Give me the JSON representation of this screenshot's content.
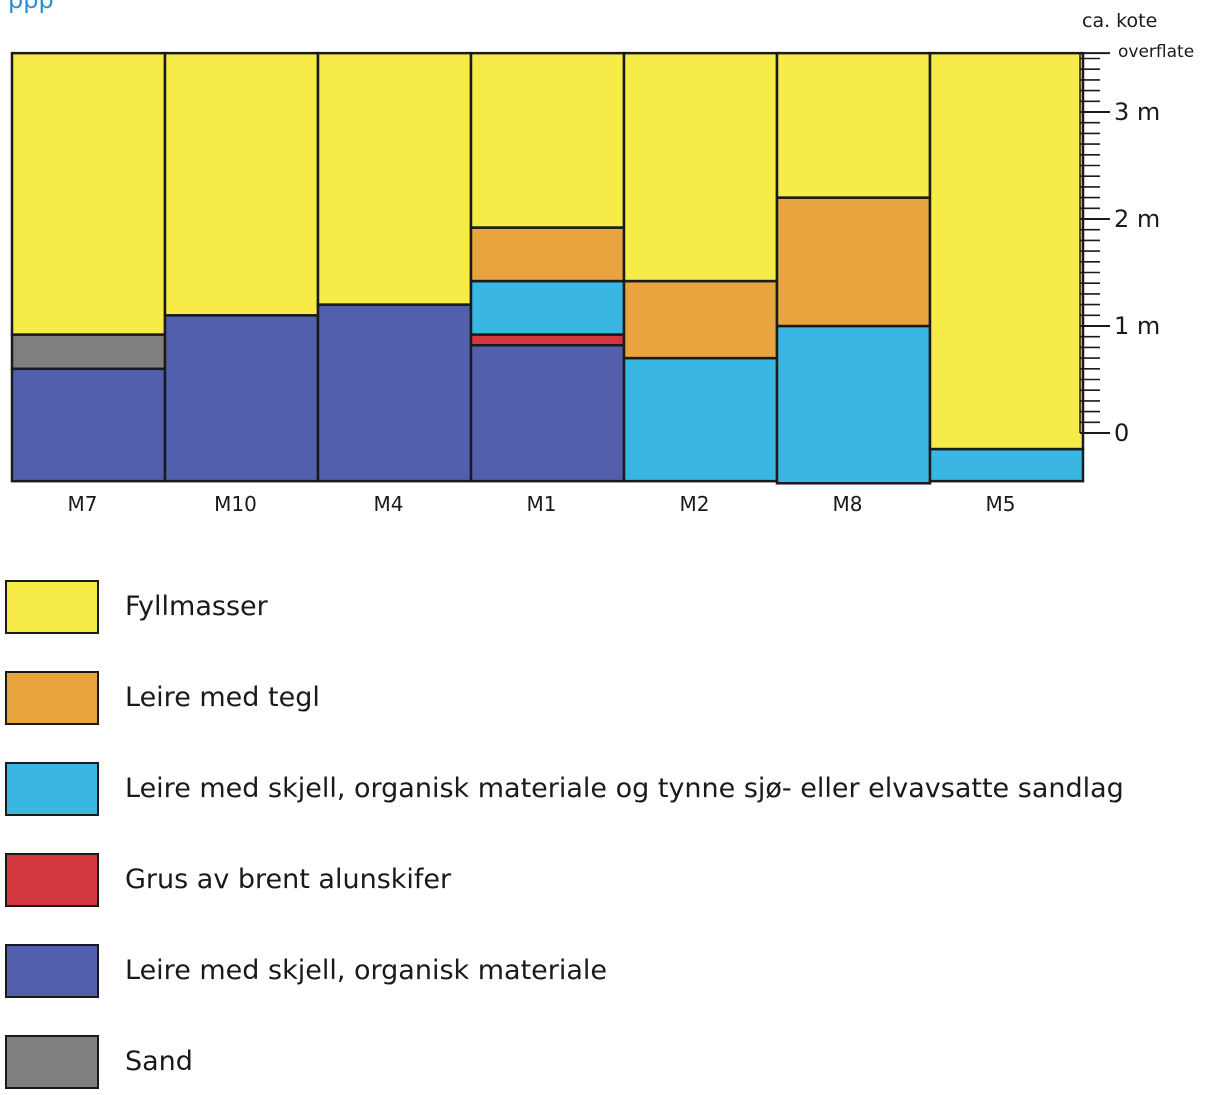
{
  "header_fragment": "ppp",
  "axis": {
    "title_line1": "ca. kote",
    "title_line2": "overflate",
    "labels": [
      {
        "value": 3,
        "text": "3 m"
      },
      {
        "value": 2,
        "text": "2 m"
      },
      {
        "value": 1,
        "text": "1 m"
      },
      {
        "value": 0,
        "text": "0"
      }
    ],
    "surface_value": 3.55
  },
  "materials": {
    "fyll": {
      "label": "Fyllmasser",
      "color": "#f7ec47"
    },
    "tegl": {
      "label": "Leire med tegl",
      "color": "#e8a43f"
    },
    "skjell_sand": {
      "label": "Leire med skjell, organisk materiale og tynne sjø- eller elvavsatte sandlag",
      "color": "#3ab6e3"
    },
    "alun": {
      "label": "Grus av brent alunskifer",
      "color": "#d2373d"
    },
    "skjell": {
      "label": "Leire med skjell, organisk materiale",
      "color": "#525fad"
    },
    "sand": {
      "label": "Sand",
      "color": "#7f7f7f"
    }
  },
  "legend_order": [
    "fyll",
    "tegl",
    "skjell_sand",
    "alun",
    "skjell",
    "sand"
  ],
  "profiles": [
    {
      "name": "M7",
      "layers": [
        {
          "m": "skjell",
          "from": -0.45,
          "to": 0.6
        },
        {
          "m": "sand",
          "from": 0.6,
          "to": 0.92
        },
        {
          "m": "fyll",
          "from": 0.92,
          "to": 3.55
        }
      ]
    },
    {
      "name": "M10",
      "layers": [
        {
          "m": "skjell",
          "from": -0.45,
          "to": 1.1
        },
        {
          "m": "fyll",
          "from": 1.1,
          "to": 3.55
        }
      ]
    },
    {
      "name": "M4",
      "layers": [
        {
          "m": "skjell",
          "from": -0.45,
          "to": 1.2
        },
        {
          "m": "fyll",
          "from": 1.2,
          "to": 3.55
        }
      ]
    },
    {
      "name": "M1",
      "layers": [
        {
          "m": "skjell",
          "from": -0.45,
          "to": 0.82
        },
        {
          "m": "alun",
          "from": 0.82,
          "to": 0.92
        },
        {
          "m": "skjell_sand",
          "from": 0.92,
          "to": 1.42
        },
        {
          "m": "tegl",
          "from": 1.42,
          "to": 1.92
        },
        {
          "m": "fyll",
          "from": 1.92,
          "to": 3.55
        }
      ]
    },
    {
      "name": "M2",
      "layers": [
        {
          "m": "skjell_sand",
          "from": -0.45,
          "to": 0.7
        },
        {
          "m": "tegl",
          "from": 0.7,
          "to": 1.42
        },
        {
          "m": "fyll",
          "from": 1.42,
          "to": 3.55
        }
      ]
    },
    {
      "name": "M8",
      "layers": [
        {
          "m": "skjell_sand",
          "from": -0.47,
          "to": 1.0
        },
        {
          "m": "tegl",
          "from": 1.0,
          "to": 2.2
        },
        {
          "m": "fyll",
          "from": 2.2,
          "to": 3.55
        }
      ]
    },
    {
      "name": "M5",
      "layers": [
        {
          "m": "skjell_sand",
          "from": -0.45,
          "to": -0.15
        },
        {
          "m": "fyll",
          "from": -0.15,
          "to": 3.55
        }
      ]
    }
  ]
}
